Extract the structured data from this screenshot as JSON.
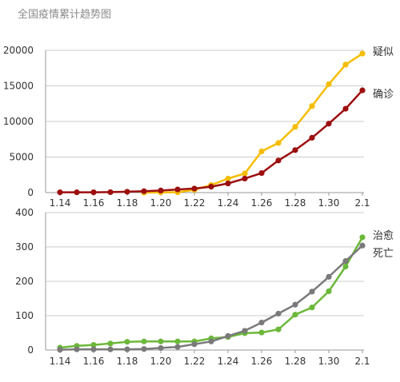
{
  "title": "全国疫情累计趋势图",
  "colors": {
    "suspected": "#f5bd00",
    "confirmed": "#9c0f0f",
    "cured": "#6cb83a",
    "dead": "#7a7a7a",
    "axis": "#999999",
    "grid": "#cccccc"
  },
  "chart_data": [
    {
      "type": "line",
      "categories": [
        "1.14",
        "1.15",
        "1.16",
        "1.17",
        "1.18",
        "1.19",
        "1.20",
        "1.21",
        "1.22",
        "1.23",
        "1.24",
        "1.25",
        "1.26",
        "1.27",
        "1.28",
        "1.29",
        "1.30",
        "1.31",
        "2.1"
      ],
      "x_tick_labels": [
        "1.14",
        "1.16",
        "1.18",
        "1.20",
        "1.22",
        "1.24",
        "1.26",
        "1.28",
        "1.30",
        "2.1"
      ],
      "y_ticks": [
        0,
        5000,
        10000,
        15000,
        20000
      ],
      "ylim": [
        0,
        20000
      ],
      "grid": true,
      "series": [
        {
          "name": "疑似",
          "color_key": "suspected",
          "values": [
            null,
            null,
            null,
            null,
            null,
            0,
            27,
            54,
            393,
            1072,
            1965,
            2684,
            5794,
            6973,
            9239,
            12167,
            15238,
            17988,
            19544
          ]
        },
        {
          "name": "确诊",
          "color_key": "confirmed",
          "values": [
            41,
            41,
            45,
            62,
            121,
            198,
            291,
            440,
            571,
            830,
            1287,
            1975,
            2744,
            4515,
            5974,
            7711,
            9692,
            11791,
            14380
          ]
        }
      ]
    },
    {
      "type": "line",
      "categories": [
        "1.14",
        "1.15",
        "1.16",
        "1.17",
        "1.18",
        "1.19",
        "1.20",
        "1.21",
        "1.22",
        "1.23",
        "1.24",
        "1.25",
        "1.26",
        "1.27",
        "1.28",
        "1.29",
        "1.30",
        "1.31",
        "2.1"
      ],
      "x_tick_labels": [
        "1.14",
        "1.16",
        "1.18",
        "1.20",
        "1.22",
        "1.24",
        "1.26",
        "1.28",
        "1.30",
        "2.1"
      ],
      "y_ticks": [
        0,
        100,
        200,
        300,
        400
      ],
      "ylim": [
        0,
        400
      ],
      "grid": true,
      "series": [
        {
          "name": "治愈",
          "color_key": "cured",
          "values": [
            7,
            12,
            15,
            19,
            24,
            25,
            25,
            25,
            25,
            34,
            38,
            49,
            51,
            60,
            103,
            124,
            171,
            243,
            328
          ]
        },
        {
          "name": "死亡",
          "color_key": "dead",
          "values": [
            1,
            2,
            2,
            2,
            2,
            3,
            6,
            9,
            17,
            25,
            41,
            56,
            80,
            106,
            132,
            170,
            213,
            259,
            304
          ]
        }
      ]
    }
  ]
}
